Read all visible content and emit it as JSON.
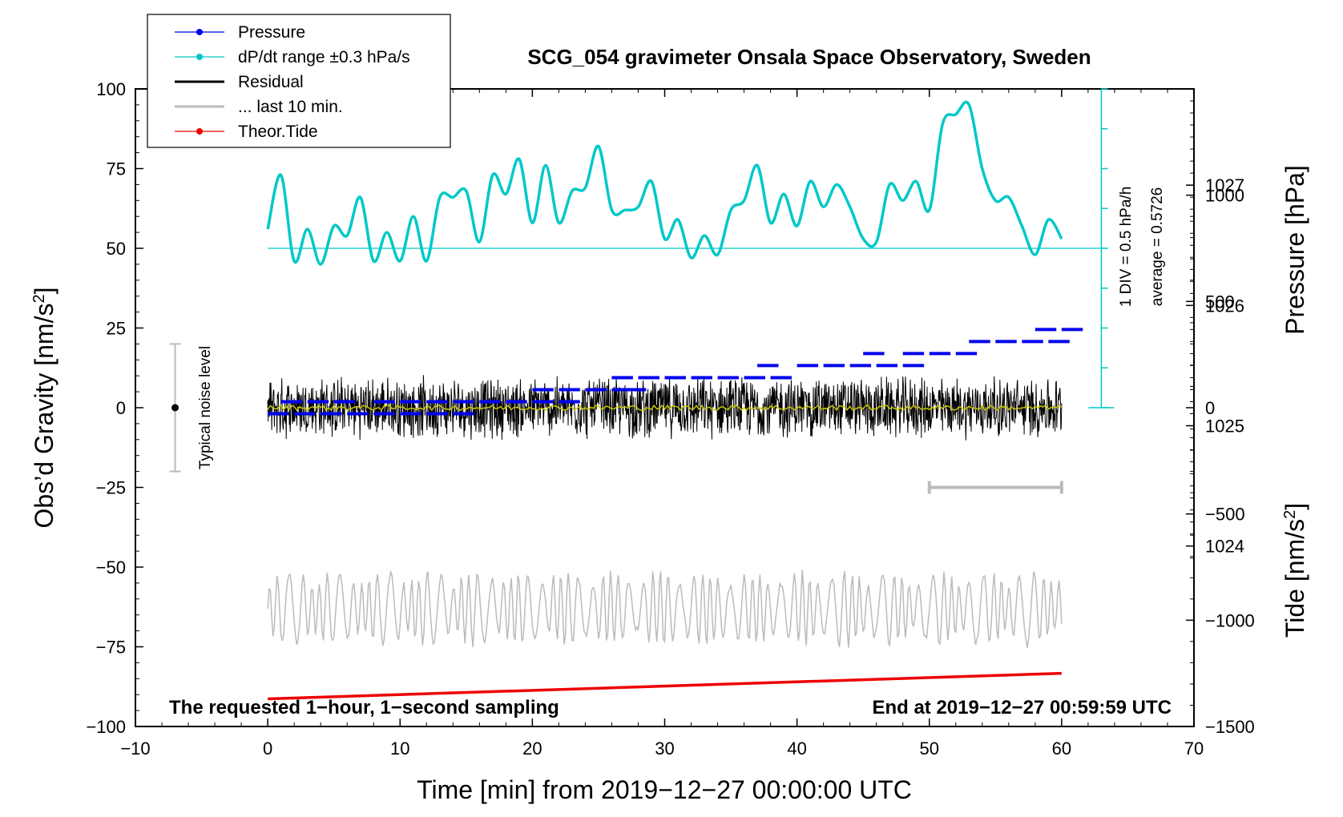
{
  "chart_data": {
    "type": "line",
    "title": "SCG_054 gravimeter Onsala Space Observatory, Sweden",
    "xlabel": "Time [min] from 2019−12−27 00:00:00 UTC",
    "ylabel_left_prefix": "Obs’d Gravity [nm/s",
    "ylabel_left_sup": "2",
    "ylabel_left_suffix": "]",
    "ylabel_pressure": "Pressure [hPa]",
    "ylabel_tide_prefix": "Tide [nm/s",
    "ylabel_tide_sup": "2",
    "ylabel_tide_suffix": "]",
    "xlim": [
      -10,
      70
    ],
    "ylim": [
      -100,
      100
    ],
    "pressure_lim": [
      1022.5,
      1027.8
    ],
    "tide_lim": [
      -1500,
      1500
    ],
    "x_ticks": [
      {
        "v": -10,
        "label": "−10"
      },
      {
        "v": 0,
        "label": "0"
      },
      {
        "v": 10,
        "label": "10"
      },
      {
        "v": 20,
        "label": "20"
      },
      {
        "v": 30,
        "label": "30"
      },
      {
        "v": 40,
        "label": "40"
      },
      {
        "v": 50,
        "label": "50"
      },
      {
        "v": 60,
        "label": "60"
      },
      {
        "v": 70,
        "label": "70"
      }
    ],
    "y_ticks": [
      {
        "v": 100,
        "label": "100"
      },
      {
        "v": 75,
        "label": "75"
      },
      {
        "v": 50,
        "label": "50"
      },
      {
        "v": 25,
        "label": "25"
      },
      {
        "v": 0,
        "label": "0"
      },
      {
        "v": -25,
        "label": "−25"
      },
      {
        "v": -50,
        "label": "−50"
      },
      {
        "v": -75,
        "label": "−75"
      },
      {
        "v": -100,
        "label": "−100"
      }
    ],
    "pressure_ticks": [
      {
        "v": 1027,
        "label": "1027"
      },
      {
        "v": 1026,
        "label": "1026"
      },
      {
        "v": 1025,
        "label": "1025"
      },
      {
        "v": 1024,
        "label": "1024"
      }
    ],
    "tide_ticks": [
      {
        "v": 1000,
        "label": "1000"
      },
      {
        "v": 500,
        "label": "500"
      },
      {
        "v": 0,
        "label": "0"
      },
      {
        "v": -500,
        "label": "−500"
      },
      {
        "v": -1000,
        "label": "−1000"
      },
      {
        "v": -1500,
        "label": "−1500"
      }
    ],
    "legend": [
      {
        "label": "Pressure",
        "color": "#0000ee",
        "marker": true
      },
      {
        "label": "dP/dt range ±0.3 hPa/s",
        "color": "#00c8c8",
        "marker": true
      },
      {
        "label": "Residual",
        "color": "#000000",
        "marker": false
      },
      {
        "label": "... last 10 min.",
        "color": "#bbbbbb",
        "marker": false
      },
      {
        "label": "Theor.Tide",
        "color": "#ee0000",
        "marker": true
      }
    ],
    "series": [
      {
        "name": "Pressure",
        "color": "#0000ee",
        "axis": "pressure",
        "points": [
          [
            0,
            1025.1
          ],
          [
            2,
            1025.1
          ],
          [
            4,
            1025.1
          ],
          [
            6,
            1025.1
          ],
          [
            8,
            1025.1
          ],
          [
            10,
            1025.1
          ],
          [
            12,
            1025.1
          ],
          [
            14,
            1025.1
          ],
          [
            1,
            1025.2
          ],
          [
            3,
            1025.2
          ],
          [
            5,
            1025.2
          ],
          [
            8,
            1025.2
          ],
          [
            10,
            1025.2
          ],
          [
            12,
            1025.2
          ],
          [
            14,
            1025.2
          ],
          [
            16,
            1025.2
          ],
          [
            18,
            1025.2
          ],
          [
            20,
            1025.2
          ],
          [
            22,
            1025.2
          ],
          [
            20,
            1025.3
          ],
          [
            22,
            1025.3
          ],
          [
            24,
            1025.3
          ],
          [
            26,
            1025.3
          ],
          [
            27,
            1025.3
          ],
          [
            26,
            1025.4
          ],
          [
            28,
            1025.4
          ],
          [
            30,
            1025.4
          ],
          [
            32,
            1025.4
          ],
          [
            34,
            1025.4
          ],
          [
            36,
            1025.4
          ],
          [
            38,
            1025.4
          ],
          [
            37,
            1025.5
          ],
          [
            40,
            1025.5
          ],
          [
            42,
            1025.5
          ],
          [
            44,
            1025.5
          ],
          [
            46,
            1025.5
          ],
          [
            48,
            1025.5
          ],
          [
            45,
            1025.6
          ],
          [
            48,
            1025.6
          ],
          [
            50,
            1025.6
          ],
          [
            52,
            1025.6
          ],
          [
            53,
            1025.7
          ],
          [
            55,
            1025.7
          ],
          [
            57,
            1025.7
          ],
          [
            59,
            1025.7
          ],
          [
            58,
            1025.8
          ],
          [
            60,
            1025.8
          ]
        ]
      },
      {
        "name": "dP/dt range ±0.3 hPa/s",
        "color": "#00c8c8",
        "axis": "left",
        "knots": [
          [
            0,
            56
          ],
          [
            1,
            73
          ],
          [
            2,
            46
          ],
          [
            3,
            56
          ],
          [
            4,
            45
          ],
          [
            5,
            57
          ],
          [
            6,
            54
          ],
          [
            7,
            66
          ],
          [
            8,
            46
          ],
          [
            9,
            55
          ],
          [
            10,
            46
          ],
          [
            11,
            60
          ],
          [
            12,
            46
          ],
          [
            13,
            66
          ],
          [
            14,
            66
          ],
          [
            15,
            68
          ],
          [
            16,
            52
          ],
          [
            17,
            73
          ],
          [
            18,
            67
          ],
          [
            19,
            78
          ],
          [
            20,
            58
          ],
          [
            21,
            76
          ],
          [
            22,
            58
          ],
          [
            23,
            68
          ],
          [
            24,
            69
          ],
          [
            25,
            82
          ],
          [
            26,
            62
          ],
          [
            27,
            62
          ],
          [
            28,
            63
          ],
          [
            29,
            71
          ],
          [
            30,
            53
          ],
          [
            31,
            59
          ],
          [
            32,
            47
          ],
          [
            33,
            54
          ],
          [
            34,
            48
          ],
          [
            35,
            62
          ],
          [
            36,
            65
          ],
          [
            37,
            76
          ],
          [
            38,
            58
          ],
          [
            39,
            67
          ],
          [
            40,
            57
          ],
          [
            41,
            71
          ],
          [
            42,
            63
          ],
          [
            43,
            70
          ],
          [
            44,
            63
          ],
          [
            45,
            53
          ],
          [
            46,
            52
          ],
          [
            47,
            70
          ],
          [
            48,
            65
          ],
          [
            49,
            71
          ],
          [
            50,
            62
          ],
          [
            51,
            89
          ],
          [
            52,
            92
          ],
          [
            53,
            95
          ],
          [
            54,
            75
          ],
          [
            55,
            65
          ],
          [
            56,
            66
          ],
          [
            57,
            57
          ],
          [
            58,
            48
          ],
          [
            59,
            59
          ],
          [
            60,
            53
          ]
        ]
      },
      {
        "name": "Residual",
        "color": "#000000",
        "axis": "left",
        "amplitude": 10,
        "x_range": [
          0,
          60
        ]
      },
      {
        "name": "... last 10 min.",
        "color": "#bbbbbb",
        "axis": "left",
        "center": -63,
        "amplitude": 9,
        "x_range": [
          0,
          60
        ]
      },
      {
        "name": "Theor.Tide",
        "color": "#ee0000",
        "axis": "tide",
        "points": [
          [
            0,
            -1370
          ],
          [
            60,
            -1250
          ]
        ]
      }
    ],
    "reference_line": {
      "value": 50,
      "axis": "left",
      "color": "#00c8c8"
    },
    "noise_bar": {
      "x": -7,
      "y_center": 0,
      "y_range": [
        -20,
        20
      ],
      "label": "Typical noise level"
    },
    "last_10_min_bar": {
      "x_range": [
        50,
        60
      ],
      "y": -25
    },
    "pressure_scale_bar": {
      "x": 63,
      "y_range": [
        0,
        100
      ],
      "labels": [
        "1 DIV = 0.5 hPa/h",
        "average = 0.5726"
      ]
    },
    "annotations": {
      "bottom_left": "The requested 1−hour, 1−second sampling",
      "bottom_right": "End at 2019−12−27 00:59:59 UTC"
    }
  }
}
